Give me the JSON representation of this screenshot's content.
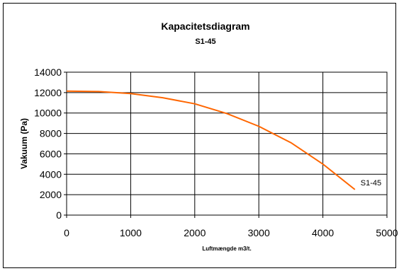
{
  "chart_data": {
    "type": "line",
    "title": "Kapacitetsdiagram",
    "subtitle": "S1-45",
    "xlabel": "Luftmængde m3/t.",
    "ylabel": "Vakuum  (Pa)",
    "xlim": [
      0,
      5000
    ],
    "ylim": [
      0,
      14000
    ],
    "x_ticks": [
      0,
      1000,
      2000,
      3000,
      4000,
      5000
    ],
    "y_ticks": [
      0,
      2000,
      4000,
      6000,
      8000,
      10000,
      12000,
      14000
    ],
    "x_tick_labels": [
      "0",
      "1000",
      "2000",
      "3000",
      "4000",
      "5000"
    ],
    "y_tick_labels": [
      "0",
      "2000",
      "4000",
      "6000",
      "8000",
      "10000",
      "12000",
      "14000"
    ],
    "grid": "horizontal and vertical",
    "series": [
      {
        "name": "S1-45",
        "color": "#ff6600",
        "x": [
          0,
          500,
          1000,
          1500,
          2000,
          2500,
          3000,
          3500,
          4000,
          4500
        ],
        "y": [
          12150,
          12100,
          11900,
          11500,
          10900,
          9950,
          8700,
          7100,
          5000,
          2500
        ]
      }
    ]
  }
}
